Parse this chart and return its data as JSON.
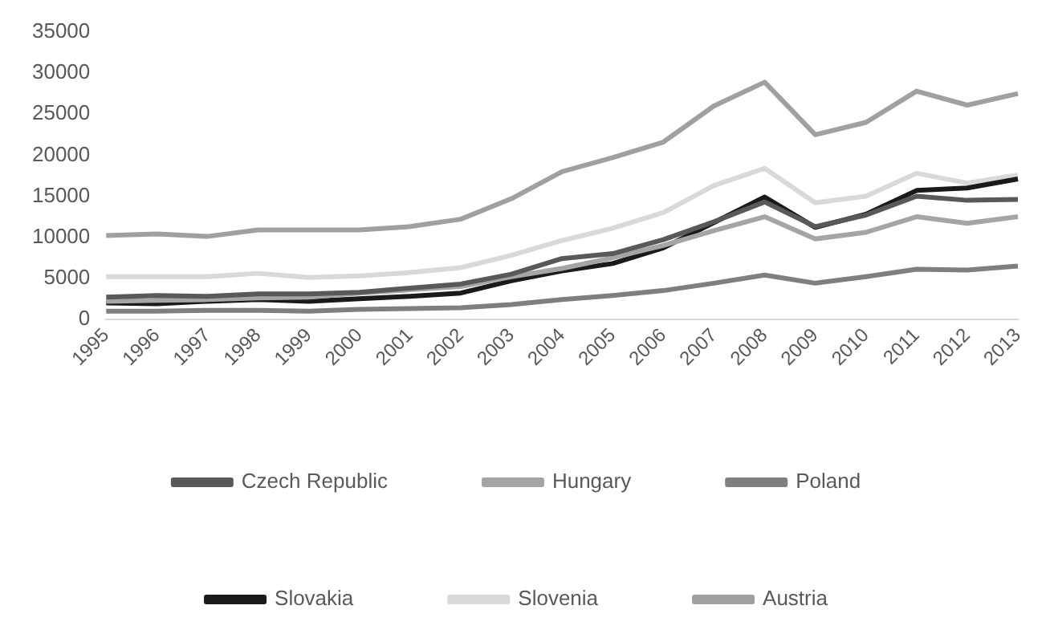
{
  "chart_data": {
    "type": "line",
    "categories": [
      "1995",
      "1996",
      "1997",
      "1998",
      "1999",
      "2000",
      "2001",
      "2002",
      "2003",
      "2004",
      "2005",
      "2006",
      "2007",
      "2008",
      "2009",
      "2010",
      "2011",
      "2012",
      "2013"
    ],
    "ylim": [
      0,
      35000
    ],
    "yticks": [
      0,
      5000,
      10000,
      15000,
      20000,
      25000,
      30000,
      35000
    ],
    "grid": false,
    "legend": "bottom",
    "marker": "none",
    "line_style": "solid",
    "series": [
      {
        "name": "Czech Republic",
        "color": "#595959",
        "values": [
          2700,
          2900,
          2800,
          3100,
          3100,
          3300,
          3800,
          4300,
          5500,
          7400,
          8000,
          9700,
          11900,
          14300,
          11300,
          12700,
          15000,
          14500,
          14600
        ]
      },
      {
        "name": "Hungary",
        "color": "#a5a5a5",
        "values": [
          2200,
          2300,
          2400,
          2600,
          2700,
          3200,
          3600,
          4000,
          5200,
          6200,
          7500,
          9000,
          10800,
          12500,
          9800,
          10600,
          12500,
          11700,
          12500
        ]
      },
      {
        "name": "Poland",
        "color": "#7f7f7f",
        "values": [
          1000,
          1000,
          1100,
          1100,
          1000,
          1200,
          1300,
          1400,
          1800,
          2400,
          2900,
          3500,
          4400,
          5400,
          4400,
          5200,
          6100,
          6000,
          6500
        ]
      },
      {
        "name": "Slovakia",
        "color": "#1a1a1a",
        "values": [
          2000,
          1900,
          2200,
          2400,
          2200,
          2500,
          2800,
          3200,
          4700,
          5900,
          6800,
          8700,
          11800,
          14900,
          11200,
          12800,
          15700,
          16000,
          17100
        ]
      },
      {
        "name": "Slovenia",
        "color": "#d9d9d9",
        "values": [
          5200,
          5200,
          5200,
          5600,
          5100,
          5300,
          5700,
          6300,
          7800,
          9600,
          11100,
          13000,
          16300,
          18400,
          14200,
          15000,
          17800,
          16600,
          17600
        ]
      },
      {
        "name": "Austria",
        "color": "#a0a0a0",
        "values": [
          10200,
          10400,
          10100,
          10900,
          10900,
          10900,
          11300,
          12200,
          14700,
          18000,
          19700,
          21600,
          26000,
          28900,
          22500,
          24000,
          27800,
          26100,
          27500
        ]
      }
    ]
  }
}
